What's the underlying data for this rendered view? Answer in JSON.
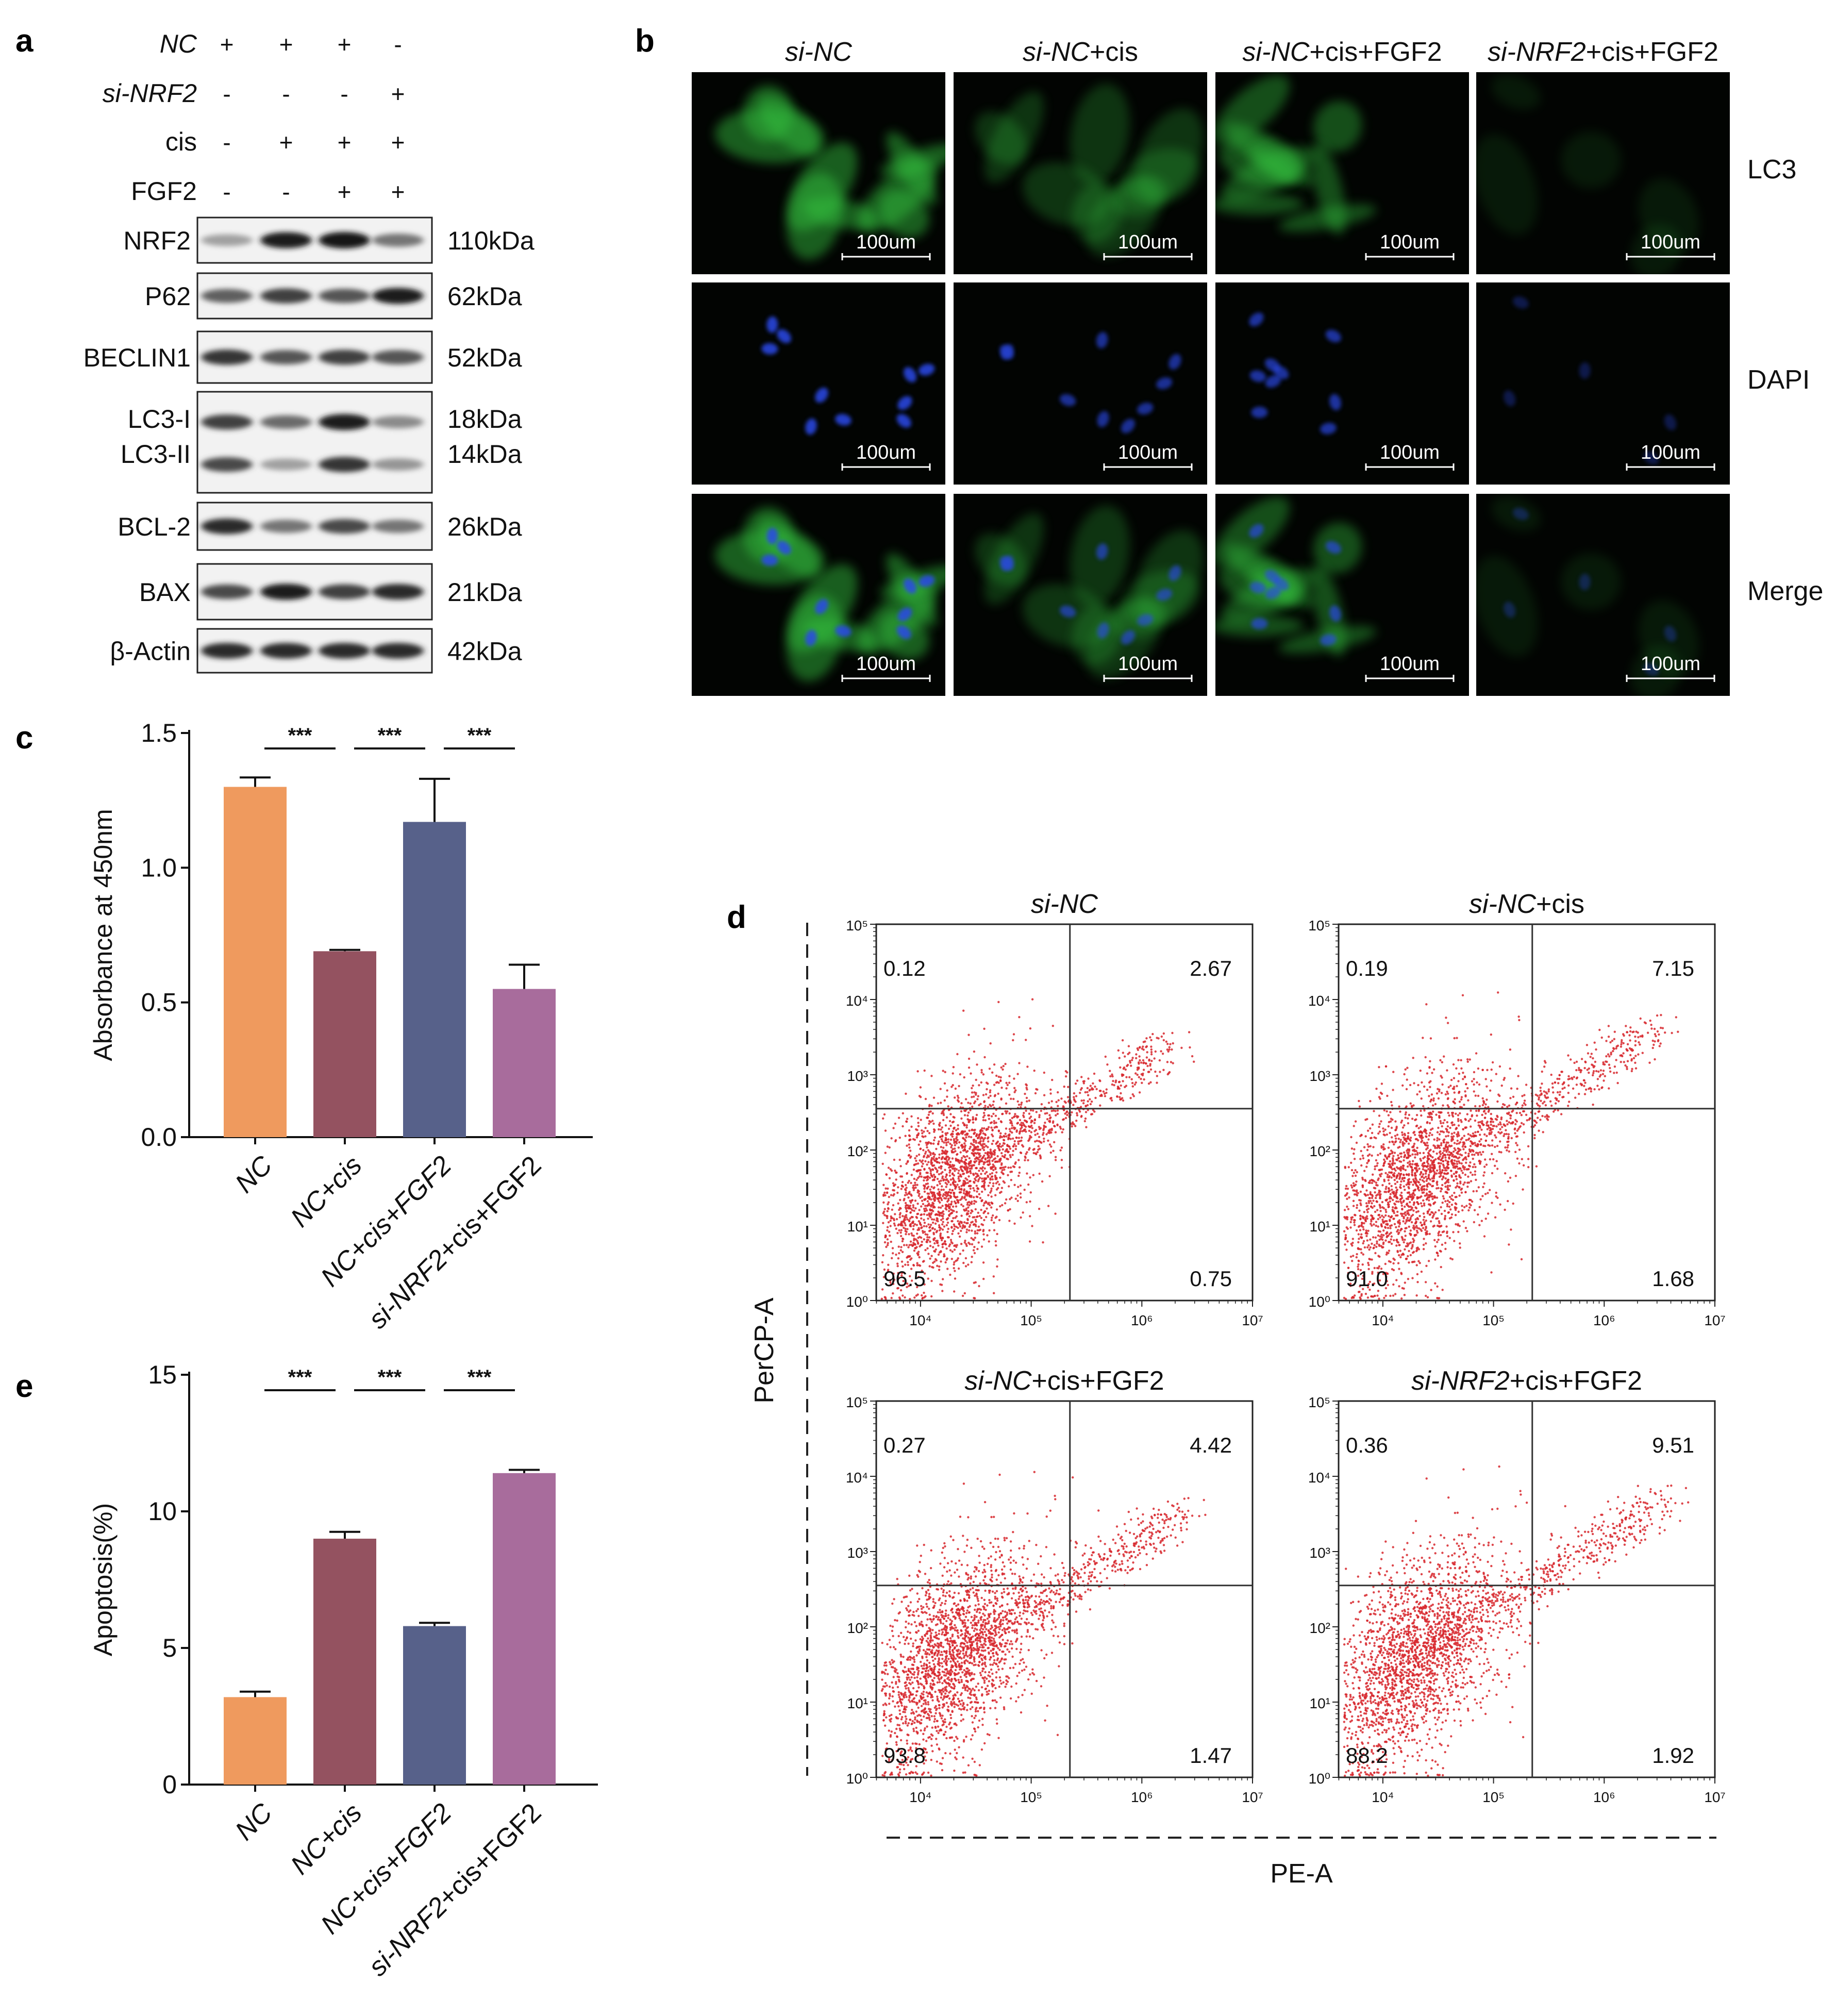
{
  "panel_labels": [
    "a",
    "b",
    "c",
    "d",
    "e"
  ],
  "colors": {
    "NC": "#EF9A5E",
    "NC_cis": "#945260",
    "NC_cis_FGF2": "#57618A",
    "siNRF2_cis_FGF2": "#A86C9C",
    "scatter": "#D7262B",
    "lc3": "#35C440",
    "dapi": "#2A49E8"
  },
  "western": {
    "conditions": [
      {
        "label": "NC",
        "italic": true,
        "signs": [
          "+",
          "+",
          "+",
          "-"
        ]
      },
      {
        "label": "si-NRF2",
        "italic": true,
        "signs": [
          "-",
          "-",
          "-",
          "+"
        ]
      },
      {
        "label": "cis",
        "italic": false,
        "signs": [
          "-",
          "+",
          "+",
          "+"
        ]
      },
      {
        "label": "FGF2",
        "italic": false,
        "signs": [
          "-",
          "-",
          "+",
          "+"
        ]
      }
    ],
    "blots": [
      {
        "labels": [
          "NRF2"
        ],
        "sizes": [
          "110kDa"
        ],
        "intensity": [
          0.35,
          0.95,
          1.0,
          0.55
        ],
        "double": [
          false
        ]
      },
      {
        "labels": [
          "P62"
        ],
        "sizes": [
          "62kDa"
        ],
        "intensity": [
          0.65,
          0.8,
          0.7,
          0.95
        ],
        "double": [
          false
        ]
      },
      {
        "labels": [
          "BECLIN1"
        ],
        "sizes": [
          "52kDa"
        ],
        "intensity": [
          0.85,
          0.7,
          0.8,
          0.7
        ],
        "double": [
          false
        ]
      },
      {
        "labels": [
          "LC3-I",
          "LC3-II"
        ],
        "sizes": [
          "18kDa",
          "14kDa"
        ],
        "intensity": [
          0.8,
          0.6,
          0.95,
          0.45
        ],
        "double": [
          true
        ]
      },
      {
        "labels": [
          "BCL-2"
        ],
        "sizes": [
          "26kDa"
        ],
        "intensity": [
          0.9,
          0.55,
          0.75,
          0.55
        ],
        "double": [
          false
        ]
      },
      {
        "labels": [
          "BAX"
        ],
        "sizes": [
          "21kDa"
        ],
        "intensity": [
          0.75,
          0.95,
          0.8,
          0.9
        ],
        "double": [
          false
        ]
      },
      {
        "labels": [
          "β-Actin"
        ],
        "sizes": [
          "42kDa"
        ],
        "intensity": [
          0.9,
          0.9,
          0.9,
          0.9
        ],
        "double": [
          false
        ]
      }
    ]
  },
  "microscopy": {
    "columns": [
      {
        "italic": "si-NC",
        "rest": ""
      },
      {
        "italic": "si-NC",
        "rest": "+cis"
      },
      {
        "italic": "si-NC",
        "rest": "+cis+FGF2"
      },
      {
        "italic": "si-NRF2",
        "rest": "+cis+FGF2"
      }
    ],
    "rows": [
      "LC3",
      "DAPI",
      "Merge"
    ],
    "scalebar_label": "100um",
    "lc3_intensity": [
      0.85,
      0.45,
      0.7,
      0.2
    ],
    "dapi_intensity": [
      0.95,
      0.7,
      0.75,
      0.35
    ]
  },
  "chart_data": [
    {
      "type": "bar",
      "panel": "c",
      "categories": [
        {
          "italic": "",
          "rest": "NC",
          "plain_italic": true
        },
        {
          "italic": "",
          "rest": "NC+cis",
          "plain_italic": true
        },
        {
          "italic": "",
          "rest": "NC+cis+FGF2",
          "plain_italic": true
        },
        {
          "italic": "si-NRF2",
          "rest": "+cis+FGF2",
          "plain_italic": false
        }
      ],
      "values": [
        1.3,
        0.69,
        1.17,
        0.55
      ],
      "errors": [
        0.035,
        0.005,
        0.16,
        0.09
      ],
      "ylabel": "Absorbance at 450nm",
      "ylim": [
        0,
        1.5
      ],
      "yticks": [
        "0.0",
        "0.5",
        "1.0",
        "1.5"
      ],
      "significance": [
        "***",
        "***",
        "***"
      ]
    },
    {
      "type": "bar",
      "panel": "e",
      "categories": [
        {
          "italic": "",
          "rest": "NC",
          "plain_italic": true
        },
        {
          "italic": "",
          "rest": "NC+cis",
          "plain_italic": true
        },
        {
          "italic": "",
          "rest": "NC+cis+FGF2",
          "plain_italic": true
        },
        {
          "italic": "si-NRF2",
          "rest": "+cis+FGF2",
          "plain_italic": false
        }
      ],
      "values": [
        3.2,
        9.0,
        5.8,
        11.4
      ],
      "errors": [
        0.2,
        0.25,
        0.12,
        0.12
      ],
      "ylabel": "Apoptosis(%)",
      "ylim": [
        0,
        15
      ],
      "yticks": [
        "0",
        "5",
        "10",
        "15"
      ],
      "significance": [
        "***",
        "***",
        "***"
      ]
    },
    {
      "type": "scatter",
      "panel": "d",
      "xlabel": "PE-A",
      "ylabel": "PerCP-A",
      "xaxis": {
        "log_range": [
          3.6,
          7
        ],
        "tick_labels": [
          "10⁴",
          "10⁵",
          "10⁶",
          "10⁷"
        ],
        "ticks": [
          4,
          5,
          6,
          7
        ]
      },
      "yaxis": {
        "log_range": [
          0,
          5
        ],
        "tick_labels": [
          "10⁰",
          "10¹",
          "10²",
          "10³",
          "10⁴",
          "10⁵"
        ],
        "ticks": [
          0,
          1,
          2,
          3,
          4,
          5
        ]
      },
      "gate": {
        "x_log": 5.35,
        "y_log": 2.55
      },
      "plots": [
        {
          "title_italic": "si-NC",
          "title_rest": "",
          "quadrants": [
            "0.12",
            "2.67",
            "96.5",
            "0.75"
          ],
          "spread": 0.35,
          "tail": 0.25
        },
        {
          "title_italic": "si-NC",
          "title_rest": "+cis",
          "quadrants": [
            "0.19",
            "7.15",
            "91.0",
            "1.68"
          ],
          "spread": 0.4,
          "tail": 0.5
        },
        {
          "title_italic": "si-NC",
          "title_rest": "+cis+FGF2",
          "quadrants": [
            "0.27",
            "4.42",
            "93.8",
            "1.47"
          ],
          "spread": 0.38,
          "tail": 0.4
        },
        {
          "title_italic": "si-NRF2",
          "title_rest": "+cis+FGF2",
          "quadrants": [
            "0.36",
            "9.51",
            "88.2",
            "1.92"
          ],
          "spread": 0.42,
          "tail": 0.6
        }
      ]
    }
  ]
}
